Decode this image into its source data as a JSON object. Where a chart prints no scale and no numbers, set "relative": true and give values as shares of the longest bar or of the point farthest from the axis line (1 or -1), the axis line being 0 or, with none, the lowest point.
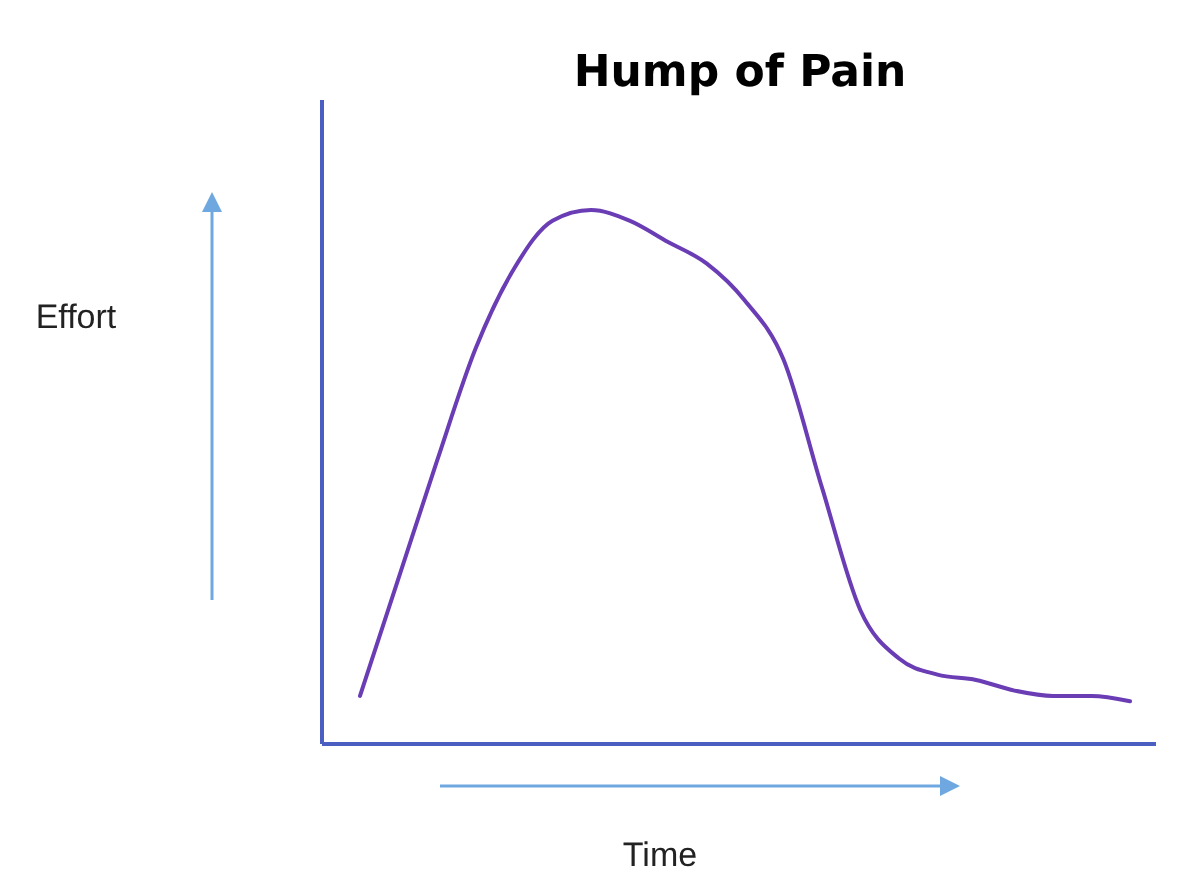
{
  "chart_data": {
    "type": "line",
    "title": "Hump of Pain",
    "xlabel": "Time",
    "annotations": [
      "Effort"
    ],
    "relative": true,
    "categories": [
      null,
      null,
      null,
      null,
      null,
      null,
      null,
      null,
      null,
      null,
      null,
      null,
      null,
      null,
      null,
      null,
      null,
      null,
      null,
      null,
      null
    ],
    "series": [
      {
        "color": "#6a3db5",
        "values": [
          0.09,
          0.31,
          0.53,
          0.74,
          0.89,
          0.98,
          1,
          0.98,
          0.94,
          0.9,
          0.83,
          0.72,
          0.48,
          0.25,
          0.16,
          0.13,
          0.12,
          0.1,
          0.09,
          0.09,
          0.08
        ]
      }
    ]
  }
}
